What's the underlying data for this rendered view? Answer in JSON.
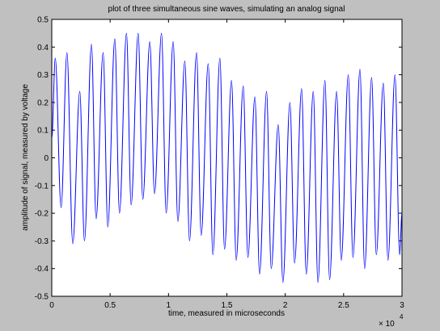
{
  "chart_data": {
    "type": "line",
    "title": "plot of three simultaneous sine waves, simulating an analog signal",
    "x_label": "time, measured in microseconds",
    "y_label": "amplitude of signal, measured by voltage",
    "x_multiplier": "× 10",
    "x_exponent": "4",
    "x": [
      0,
      0.03,
      0.08,
      0.13,
      0.18,
      0.24,
      0.28,
      0.34,
      0.38,
      0.44,
      0.48,
      0.54,
      0.58,
      0.64,
      0.68,
      0.74,
      0.78,
      0.84,
      0.88,
      0.94,
      0.98,
      1.04,
      1.08,
      1.14,
      1.18,
      1.24,
      1.28,
      1.34,
      1.38,
      1.44,
      1.48,
      1.54,
      1.58,
      1.64,
      1.68,
      1.74,
      1.78,
      1.84,
      1.88,
      1.94,
      1.98,
      2.04,
      2.08,
      2.14,
      2.18,
      2.24,
      2.28,
      2.34,
      2.38,
      2.44,
      2.48,
      2.54,
      2.58,
      2.64,
      2.68,
      2.74,
      2.78,
      2.84,
      2.88,
      2.94,
      2.98,
      3.0
    ],
    "series": [
      {
        "color": "#0000ff",
        "values": [
          0.07,
          0.36,
          -0.18,
          0.38,
          -0.31,
          0.24,
          -0.3,
          0.41,
          -0.22,
          0.38,
          -0.25,
          0.43,
          -0.2,
          0.45,
          -0.17,
          0.45,
          -0.15,
          0.42,
          -0.13,
          0.45,
          -0.2,
          0.42,
          -0.23,
          0.35,
          -0.3,
          0.38,
          -0.28,
          0.34,
          -0.35,
          0.36,
          -0.33,
          0.28,
          -0.37,
          0.26,
          -0.36,
          0.22,
          -0.42,
          0.24,
          -0.4,
          0.12,
          -0.45,
          0.2,
          -0.38,
          0.25,
          -0.42,
          0.24,
          -0.45,
          0.28,
          -0.44,
          0.24,
          -0.37,
          0.3,
          -0.36,
          0.32,
          -0.4,
          0.29,
          -0.35,
          0.27,
          -0.37,
          0.3,
          -0.35,
          -0.2
        ]
      }
    ],
    "xlim": [
      0,
      3
    ],
    "xticks": [
      0,
      0.5,
      1,
      1.5,
      2,
      2.5,
      3
    ],
    "ylim": [
      -0.5,
      0.5
    ],
    "yticks": [
      -0.5,
      -0.4,
      -0.3,
      -0.2,
      -0.1,
      0,
      0.1,
      0.2,
      0.3,
      0.4,
      0.5
    ]
  }
}
